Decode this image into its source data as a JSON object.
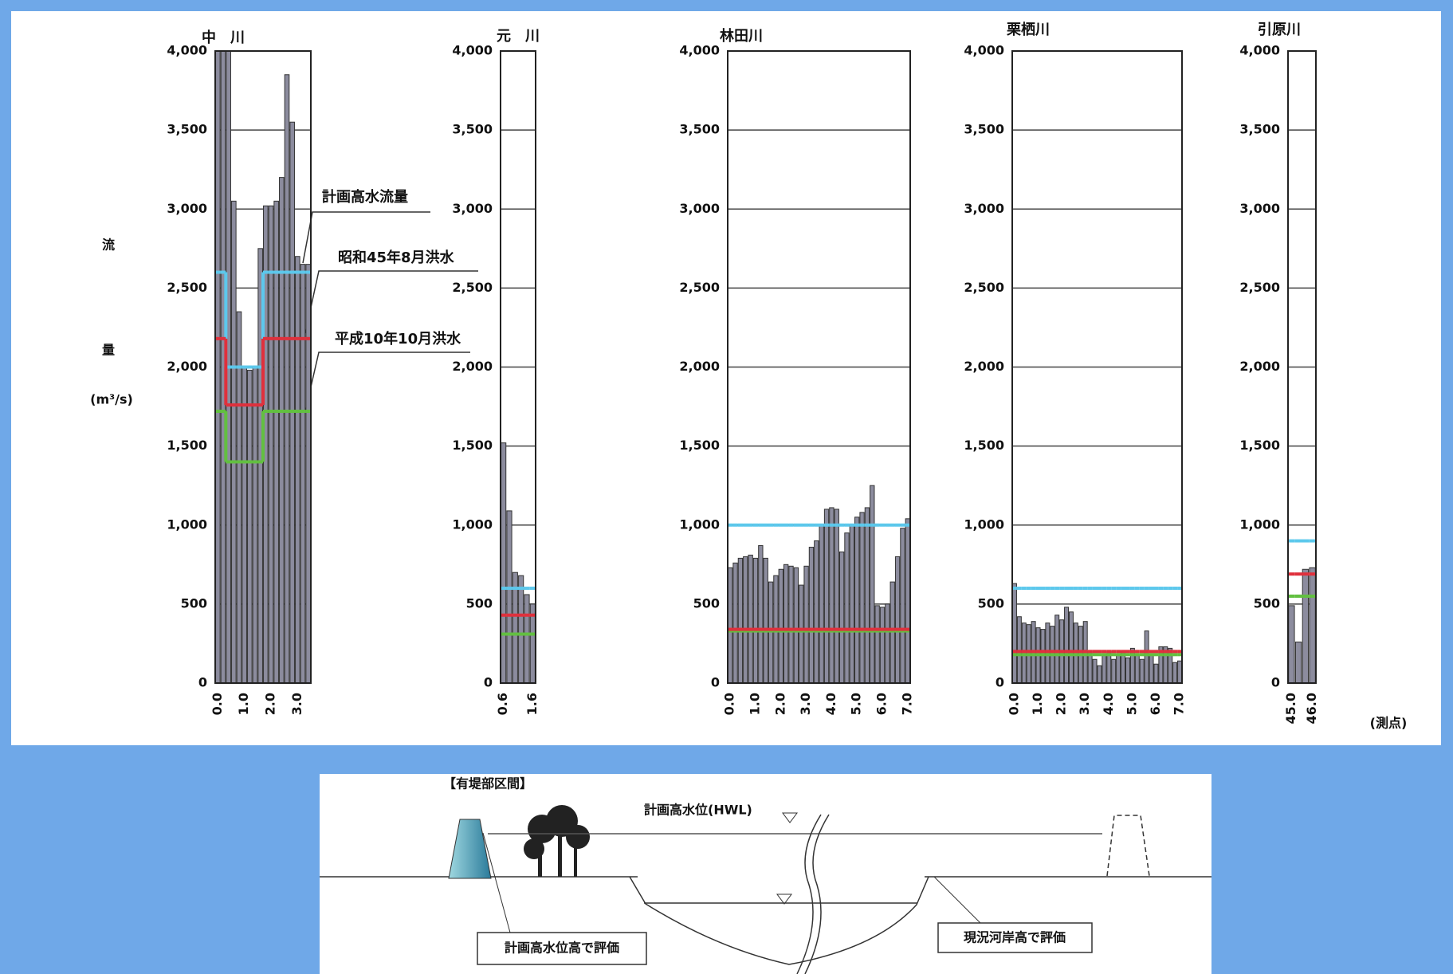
{
  "chart_data": [
    {
      "type": "bar",
      "title": "中　川",
      "ylabel": [
        "流",
        "量",
        "(m³/s)"
      ],
      "categories": [
        "0.0",
        null,
        null,
        null,
        null,
        "1.0",
        null,
        null,
        null,
        null,
        "2.0",
        null,
        null,
        null,
        null,
        "3.0",
        null,
        null
      ],
      "values": [
        4000,
        4000,
        4000,
        3050,
        2350,
        2000,
        1980,
        2000,
        2750,
        3020,
        3020,
        3050,
        3200,
        3850,
        3550,
        2700,
        2650,
        2650
      ],
      "color": "#8c8c9e",
      "grid": true,
      "ylim": [
        0,
        4000
      ],
      "yticks": [
        0,
        500,
        {
          "value": 1000,
          "label": "1,000"
        },
        {
          "value": 1500,
          "label": "1,500"
        },
        {
          "value": 2000,
          "label": "2,000"
        },
        {
          "value": 2500,
          "label": "2,500"
        },
        {
          "value": 3000,
          "label": "3,000"
        },
        {
          "value": 3500,
          "label": "3,500"
        },
        {
          "value": 4000,
          "label": "4,000"
        }
      ],
      "series": [
        {
          "name": "計画高水流量",
          "color": "#5cc8ec",
          "values": [
            2600,
            2600,
            2000,
            2000,
            2000,
            2000,
            2000,
            2000,
            2000,
            2600,
            2600,
            2600,
            2600,
            2600,
            2600,
            2600,
            2600,
            2600
          ]
        },
        {
          "name": "昭和45年8月洪水",
          "color": "#e0303c",
          "values": [
            2180,
            2180,
            1760,
            1760,
            1760,
            1760,
            1760,
            1760,
            1760,
            2180,
            2180,
            2180,
            2180,
            2180,
            2180,
            2180,
            2180,
            2180
          ]
        },
        {
          "name": "平成10年10月洪水",
          "color": "#62c040",
          "values": [
            1720,
            1720,
            1400,
            1400,
            1400,
            1400,
            1400,
            1400,
            1400,
            1720,
            1720,
            1720,
            1720,
            1720,
            1720,
            1720,
            1720,
            1720
          ]
        }
      ]
    },
    {
      "type": "bar",
      "title": "元　川",
      "categories": [
        "0.6",
        null,
        null,
        null,
        null,
        "1.6"
      ],
      "values": [
        1520,
        1090,
        700,
        680,
        560,
        500
      ],
      "color": "#8c8c9e",
      "grid": true,
      "ylim": [
        0,
        4000
      ],
      "yticks": [
        0,
        500,
        {
          "value": 1000,
          "label": "1,000"
        },
        {
          "value": 1500,
          "label": "1,500"
        },
        {
          "value": 2000,
          "label": "2,000"
        },
        {
          "value": 2500,
          "label": "2,500"
        },
        {
          "value": 3000,
          "label": "3,000"
        },
        {
          "value": 3500,
          "label": "3,500"
        },
        {
          "value": 4000,
          "label": "4,000"
        }
      ],
      "series": [
        {
          "color": "#5cc8ec",
          "values": [
            600,
            600,
            600,
            600,
            600,
            600
          ]
        },
        {
          "color": "#e0303c",
          "values": [
            430,
            430,
            430,
            430,
            430,
            430
          ]
        },
        {
          "color": "#62c040",
          "values": [
            310,
            310,
            310,
            310,
            310,
            310
          ]
        }
      ]
    },
    {
      "type": "bar",
      "title": "林田川",
      "categories": [
        "0.0",
        null,
        null,
        null,
        null,
        "1.0",
        null,
        null,
        null,
        null,
        "2.0",
        null,
        null,
        null,
        null,
        "3.0",
        null,
        null,
        null,
        null,
        "4.0",
        null,
        null,
        null,
        null,
        "5.0",
        null,
        null,
        null,
        null,
        "6.0",
        null,
        null,
        null,
        null,
        "7.0"
      ],
      "values": [
        730,
        760,
        790,
        800,
        810,
        790,
        870,
        790,
        640,
        680,
        720,
        750,
        740,
        730,
        620,
        740,
        860,
        900,
        1000,
        1100,
        1110,
        1100,
        830,
        950,
        1000,
        1050,
        1080,
        1110,
        1250,
        490,
        480,
        500,
        640,
        800,
        980,
        1040
      ],
      "color": "#8c8c9e",
      "grid": true,
      "ylim": [
        0,
        4000
      ],
      "yticks": [
        0,
        500,
        {
          "value": 1000,
          "label": "1,000"
        },
        {
          "value": 1500,
          "label": "1,500"
        },
        {
          "value": 2000,
          "label": "2,000"
        },
        {
          "value": 2500,
          "label": "2,500"
        },
        {
          "value": 3000,
          "label": "3,000"
        },
        {
          "value": 3500,
          "label": "3,500"
        },
        {
          "value": 4000,
          "label": "4,000"
        }
      ],
      "series": [
        {
          "color": "#5cc8ec",
          "values": [
            1000,
            1000,
            1000,
            1000,
            1000,
            1000,
            1000,
            1000,
            1000,
            1000,
            1000,
            1000,
            1000,
            1000,
            1000,
            1000,
            1000,
            1000,
            1000,
            1000,
            1000,
            1000,
            1000,
            1000,
            1000,
            1000,
            1000,
            1000,
            1000,
            1000,
            1000,
            1000,
            1000,
            1000,
            1000,
            1000
          ]
        },
        {
          "color": "#62c040",
          "values": [
            330,
            330,
            330,
            330,
            330,
            330,
            330,
            330,
            330,
            330,
            330,
            330,
            330,
            330,
            330,
            330,
            330,
            330,
            330,
            330,
            330,
            330,
            330,
            330,
            330,
            330,
            330,
            330,
            330,
            330,
            330,
            330,
            330,
            330,
            330,
            330
          ]
        },
        {
          "color": "#e0303c",
          "values": [
            340,
            340,
            340,
            340,
            340,
            340,
            340,
            340,
            340,
            340,
            340,
            340,
            340,
            340,
            340,
            340,
            340,
            340,
            340,
            340,
            340,
            340,
            340,
            340,
            340,
            340,
            340,
            340,
            340,
            340,
            340,
            340,
            340,
            340,
            340,
            340
          ]
        }
      ]
    },
    {
      "type": "bar",
      "title": "栗栖川",
      "categories": [
        "0.0",
        null,
        null,
        null,
        null,
        "1.0",
        null,
        null,
        null,
        null,
        "2.0",
        null,
        null,
        null,
        null,
        "3.0",
        null,
        null,
        null,
        null,
        "4.0",
        null,
        null,
        null,
        null,
        "5.0",
        null,
        null,
        null,
        null,
        "6.0",
        null,
        null,
        null,
        null,
        "7.0"
      ],
      "values": [
        630,
        420,
        380,
        370,
        390,
        350,
        340,
        380,
        360,
        430,
        400,
        480,
        450,
        380,
        360,
        390,
        200,
        150,
        110,
        180,
        200,
        150,
        180,
        200,
        160,
        220,
        180,
        150,
        330,
        180,
        120,
        230,
        230,
        220,
        130,
        140
      ],
      "color": "#8c8c9e",
      "grid": true,
      "ylim": [
        0,
        4000
      ],
      "yticks": [
        0,
        500,
        {
          "value": 1000,
          "label": "1,000"
        },
        {
          "value": 1500,
          "label": "1,500"
        },
        {
          "value": 2000,
          "label": "2,000"
        },
        {
          "value": 2500,
          "label": "2,500"
        },
        {
          "value": 3000,
          "label": "3,000"
        },
        {
          "value": 3500,
          "label": "3,500"
        },
        {
          "value": 4000,
          "label": "4,000"
        }
      ],
      "series": [
        {
          "color": "#5cc8ec",
          "values": [
            600,
            600,
            600,
            600,
            600,
            600,
            600,
            600,
            600,
            600,
            600,
            600,
            600,
            600,
            600,
            600,
            600,
            600,
            600,
            600,
            600,
            600,
            600,
            600,
            600,
            600,
            600,
            600,
            600,
            600,
            600,
            600,
            600,
            600,
            600,
            600
          ]
        },
        {
          "color": "#62c040",
          "values": [
            180,
            180,
            180,
            180,
            180,
            180,
            180,
            180,
            180,
            180,
            180,
            180,
            180,
            180,
            180,
            180,
            180,
            180,
            180,
            180,
            180,
            180,
            180,
            180,
            180,
            180,
            180,
            180,
            180,
            180,
            180,
            180,
            180,
            180,
            180,
            180
          ]
        },
        {
          "color": "#e0303c",
          "values": [
            200,
            200,
            200,
            200,
            200,
            200,
            200,
            200,
            200,
            200,
            200,
            200,
            200,
            200,
            200,
            200,
            200,
            200,
            200,
            200,
            200,
            200,
            200,
            200,
            200,
            200,
            200,
            200,
            200,
            200,
            200,
            200,
            200,
            200,
            200,
            200
          ]
        }
      ]
    },
    {
      "type": "bar",
      "title": "引原川",
      "xlabel": "(測点)",
      "categories": [
        "45.0",
        null,
        null,
        "46.0"
      ],
      "values": [
        490,
        260,
        720,
        730
      ],
      "color": "#8c8c9e",
      "grid": true,
      "ylim": [
        0,
        4000
      ],
      "yticks": [
        0,
        500,
        {
          "value": 1000,
          "label": "1,000"
        },
        {
          "value": 1500,
          "label": "1,500"
        },
        {
          "value": 2000,
          "label": "2,000"
        },
        {
          "value": 2500,
          "label": "2,500"
        },
        {
          "value": 3000,
          "label": "3,000"
        },
        {
          "value": 3500,
          "label": "3,500"
        },
        {
          "value": 4000,
          "label": "4,000"
        }
      ],
      "series": [
        {
          "color": "#5cc8ec",
          "values": [
            900,
            900,
            900,
            900
          ]
        },
        {
          "color": "#e0303c",
          "values": [
            690,
            690,
            690,
            690
          ]
        },
        {
          "color": "#62c040",
          "values": [
            550,
            550,
            550,
            550
          ]
        }
      ]
    }
  ],
  "diagram": {
    "title": "【有堤部区間】",
    "hwl_label": "計画高水位(HWL)",
    "left_box": "計画高水位高で評価",
    "right_box": "現況河岸高で評価"
  }
}
